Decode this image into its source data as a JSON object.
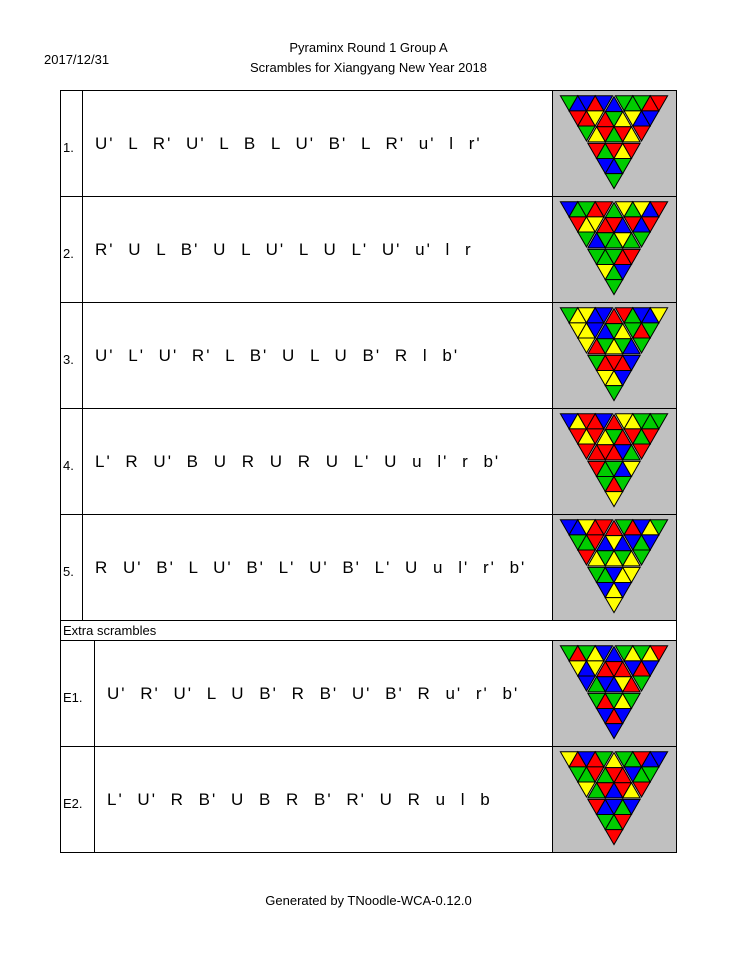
{
  "header": {
    "date": "2017/12/31",
    "title": "Pyraminx Round 1 Group A",
    "subtitle": "Scrambles for Xiangyang New Year 2018"
  },
  "scrambles": [
    {
      "number": "1.",
      "scramble": "U' L R' U' L B L U' B' L R' u' l r'"
    },
    {
      "number": "2.",
      "scramble": "R' U L B' U L U' L U L' U' u' l r"
    },
    {
      "number": "3.",
      "scramble": "U' L' U' R' L B' U L U B' R l b'"
    },
    {
      "number": "4.",
      "scramble": "L' R U' B U R U R U L' U u l' r b'"
    },
    {
      "number": "5.",
      "scramble": "R U' B' L U' B' L' U' B' L' U u l' r' b'"
    }
  ],
  "extra_label": "Extra scrambles",
  "extra_scrambles": [
    {
      "number": "E1.",
      "scramble": "U' R' U' L U B' R B' U' B' R u' r' b'"
    },
    {
      "number": "E2.",
      "scramble": "L' U' R B' U B R B' R' U R u l b"
    }
  ],
  "footer": "Generated by TNoodle-WCA-0.12.0"
}
